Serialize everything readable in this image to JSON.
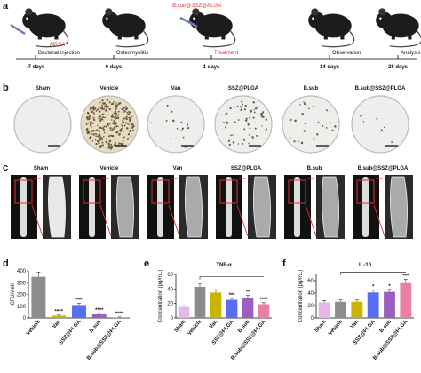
{
  "panel_labels": [
    "a",
    "b",
    "c",
    "d",
    "e",
    "f"
  ],
  "timeline": {
    "agents": [
      "MRSA",
      "B.sub@SSZ@PLGA"
    ],
    "events": [
      {
        "label": "Bacterial injection",
        "day": "-7 days"
      },
      {
        "label": "Osteomyelitis",
        "day": "0 days"
      },
      {
        "label": "Treatment",
        "day": "1 days"
      },
      {
        "label": "Observation",
        "day": "14 days"
      },
      {
        "label": "Analysis",
        "day": "28 days"
      }
    ]
  },
  "dishes": {
    "groups": [
      "Sham",
      "Vehicle",
      "Van",
      "SSZ@PLGA",
      "B.sub",
      "B.sub@SSZ@PLGA"
    ]
  },
  "ct": {
    "groups": [
      "Sham",
      "Vehicle",
      "Van",
      "SSZ@PLGA",
      "B.sub",
      "B.sub@SSZ@PLGA"
    ]
  },
  "chart_data": [
    {
      "type": "bar",
      "ylabel": "CFU/well",
      "categories": [
        "Vehicle",
        "Van",
        "SSZ@PLGA",
        "B.sub",
        "B.sub@SSZ@PLGA"
      ],
      "values": [
        350,
        20,
        110,
        30,
        5
      ],
      "errors": [
        40,
        5,
        15,
        8,
        3
      ],
      "colors": [
        "#8c8c8c",
        "#c9b400",
        "#5a6cf2",
        "#9b5fc0",
        "#e97fa3"
      ],
      "significance": [
        null,
        "****",
        "***",
        "****",
        "****"
      ],
      "ylim": [
        0,
        400
      ],
      "yticks": [
        0,
        100,
        200,
        300,
        400
      ]
    },
    {
      "type": "bar",
      "title": "TNF-α",
      "ylabel": "Concentration (pg/mL)",
      "categories": [
        "Sham",
        "Vehicle",
        "Van",
        "SSZ@PLGA",
        "B.sub",
        "B.sub@SSZ@PLGA"
      ],
      "values": [
        15,
        43,
        35,
        25,
        28,
        19
      ],
      "errors": [
        2,
        4,
        4,
        2,
        3,
        2
      ],
      "colors": [
        "#e9b6ea",
        "#8c8c8c",
        "#c9b400",
        "#5a6cf2",
        "#9b5fc0",
        "#e97fa3"
      ],
      "significance": [
        null,
        null,
        null,
        "***",
        "**",
        "****"
      ],
      "ylim": [
        0,
        60
      ],
      "yticks": [
        0,
        20,
        40,
        60
      ]
    },
    {
      "type": "bar",
      "title": "IL-10",
      "ylabel": "Concentration (pg/mL)",
      "categories": [
        "Sham",
        "Vehicle",
        "Van",
        "SSZ@PLGA",
        "B.sub",
        "B.sub@SSZ@PLGA"
      ],
      "values": [
        25,
        26,
        26,
        41,
        42,
        56
      ],
      "errors": [
        3,
        3,
        3,
        4,
        4,
        6
      ],
      "colors": [
        "#e9b6ea",
        "#8c8c8c",
        "#c9b400",
        "#5a6cf2",
        "#9b5fc0",
        "#e97fa3"
      ],
      "significance": [
        null,
        null,
        null,
        "*",
        "*",
        "***"
      ],
      "ylim": [
        0,
        70
      ],
      "yticks": [
        0,
        20,
        40,
        60
      ]
    }
  ]
}
